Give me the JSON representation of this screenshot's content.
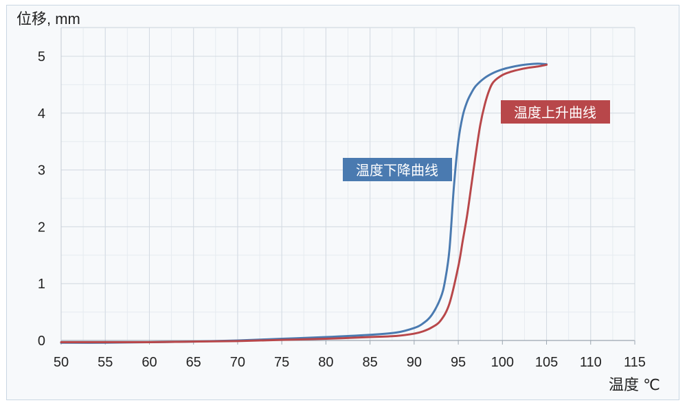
{
  "chart_data": {
    "type": "line",
    "ylabel": "位移, mm",
    "xlabel": "温度 ℃",
    "xlim": [
      50,
      115
    ],
    "ylim": [
      0,
      5
    ],
    "x_ticks": [
      "50",
      "55",
      "60",
      "65",
      "70",
      "75",
      "80",
      "85",
      "90",
      "95",
      "100",
      "105",
      "110",
      "115"
    ],
    "y_ticks": [
      "0",
      "1",
      "2",
      "3",
      "4",
      "5"
    ],
    "grid": true,
    "series": [
      {
        "name": "温度下降曲线",
        "color": "#4a7ab0",
        "x": [
          50,
          55,
          60,
          65,
          70,
          75,
          80,
          85,
          88,
          90,
          91,
          92,
          93,
          93.5,
          94,
          94.5,
          95,
          95.5,
          96,
          96.5,
          97,
          98,
          99,
          100,
          101,
          102,
          103,
          104,
          105
        ],
        "y": [
          -0.04,
          -0.04,
          -0.03,
          -0.02,
          0.0,
          0.03,
          0.06,
          0.1,
          0.14,
          0.22,
          0.3,
          0.45,
          0.75,
          1.05,
          1.6,
          2.7,
          3.5,
          3.95,
          4.2,
          4.36,
          4.48,
          4.62,
          4.71,
          4.77,
          4.81,
          4.84,
          4.86,
          4.87,
          4.86
        ]
      },
      {
        "name": "温度上升曲线",
        "color": "#b8474a",
        "x": [
          50,
          55,
          60,
          65,
          70,
          75,
          80,
          85,
          88,
          90,
          91,
          92,
          93,
          94,
          95,
          95.5,
          96,
          96.5,
          97,
          97.5,
          98,
          98.5,
          99,
          100,
          101,
          102,
          103,
          104,
          105
        ],
        "y": [
          -0.03,
          -0.03,
          -0.03,
          -0.02,
          -0.01,
          0.01,
          0.03,
          0.06,
          0.08,
          0.12,
          0.16,
          0.23,
          0.35,
          0.65,
          1.3,
          1.75,
          2.2,
          2.75,
          3.3,
          3.8,
          4.15,
          4.4,
          4.55,
          4.67,
          4.73,
          4.77,
          4.8,
          4.82,
          4.85
        ]
      }
    ]
  }
}
